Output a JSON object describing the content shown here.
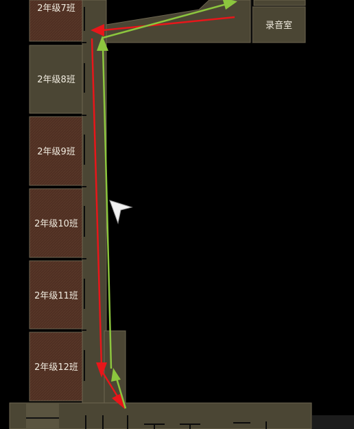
{
  "map": {
    "rooms": [
      {
        "id": "class7",
        "label": "2年级7班",
        "type": "classroom"
      },
      {
        "id": "class8",
        "label": "2年级8班",
        "type": "plain"
      },
      {
        "id": "class9",
        "label": "2年级9班",
        "type": "classroom"
      },
      {
        "id": "class10",
        "label": "2年级10班",
        "type": "classroom"
      },
      {
        "id": "class11",
        "label": "2年级11班",
        "type": "classroom"
      },
      {
        "id": "class12",
        "label": "2年级12班",
        "type": "classroom"
      },
      {
        "id": "recording",
        "label": "录音室",
        "type": "plain"
      }
    ],
    "colors": {
      "background": "#000000",
      "floor": "#4b4634",
      "floor_border": "#6c6550",
      "classroom": "#4f2f22",
      "wall": "#0c0c0c",
      "label": "#f0ebdf",
      "route_red": "#e8161a",
      "route_green": "#8cc63e",
      "cursor": "#f2f2f2"
    },
    "routes": [
      {
        "name": "red",
        "color": "#e8161a"
      },
      {
        "name": "green",
        "color": "#8cc63e"
      }
    ],
    "cursor_icon": "arrow-pointer-icon"
  }
}
